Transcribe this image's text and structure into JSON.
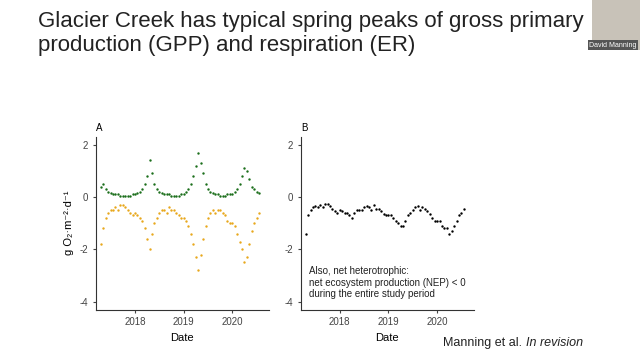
{
  "slide": {
    "title": "Glacier Creek has typical spring peaks of gross primary production (GPP) and respiration (ER)",
    "citation_authors": "Manning et al.",
    "citation_status": "In revision",
    "speaker": "David Manning"
  },
  "chart_data": [
    {
      "type": "scatter",
      "title": "A",
      "xlabel": "Date",
      "ylabel": "g O₂·m⁻²·d⁻¹",
      "x": [
        2017.3,
        2017.35,
        2017.4,
        2017.45,
        2017.5,
        2017.55,
        2017.6,
        2017.65,
        2017.7,
        2017.75,
        2017.8,
        2017.85,
        2017.9,
        2017.95,
        2018.0,
        2018.05,
        2018.1,
        2018.15,
        2018.2,
        2018.25,
        2018.3,
        2018.35,
        2018.4,
        2018.45,
        2018.5,
        2018.55,
        2018.6,
        2018.65,
        2018.7,
        2018.75,
        2018.8,
        2018.85,
        2018.9,
        2018.95,
        2019.0,
        2019.05,
        2019.1,
        2019.15,
        2019.2,
        2019.25,
        2019.3,
        2019.35,
        2019.4,
        2019.45,
        2019.5,
        2019.55,
        2019.6,
        2019.65,
        2019.7,
        2019.75,
        2019.8,
        2019.85,
        2019.9,
        2019.95,
        2020.0,
        2020.05,
        2020.1,
        2020.15,
        2020.2,
        2020.25,
        2020.3,
        2020.35,
        2020.4,
        2020.45,
        2020.5,
        2020.55
      ],
      "xlim": [
        2017.2,
        2020.75
      ],
      "xticks": [
        2018,
        2019,
        2020
      ],
      "ylim": [
        -4.3,
        2.3
      ],
      "yticks": [
        -4,
        -2,
        0,
        2
      ],
      "grid": false,
      "marker": "o",
      "series": [
        {
          "color": "#1b6e1b",
          "values": [
            0.4,
            0.5,
            0.3,
            0.2,
            0.15,
            0.1,
            0.1,
            0.1,
            0.05,
            0.05,
            0.05,
            0.05,
            0.05,
            0.1,
            0.1,
            0.15,
            0.2,
            0.3,
            0.5,
            0.8,
            1.4,
            0.9,
            0.5,
            0.3,
            0.2,
            0.15,
            0.1,
            0.1,
            0.1,
            0.05,
            0.05,
            0.05,
            0.05,
            0.1,
            0.1,
            0.2,
            0.3,
            0.5,
            0.8,
            1.2,
            1.7,
            1.3,
            0.9,
            0.5,
            0.3,
            0.2,
            0.15,
            0.1,
            0.1,
            0.05,
            0.05,
            0.05,
            0.1,
            0.1,
            0.1,
            0.2,
            0.3,
            0.5,
            0.8,
            1.1,
            1.0,
            0.7,
            0.4,
            0.3,
            0.2,
            0.15
          ]
        },
        {
          "color": "#e8a81c",
          "values": [
            -1.8,
            -1.2,
            -0.8,
            -0.6,
            -0.5,
            -0.5,
            -0.4,
            -0.5,
            -0.3,
            -0.3,
            -0.4,
            -0.5,
            -0.6,
            -0.7,
            -0.6,
            -0.7,
            -0.8,
            -0.9,
            -1.2,
            -1.6,
            -2.0,
            -1.4,
            -1.0,
            -0.8,
            -0.6,
            -0.5,
            -0.5,
            -0.6,
            -0.4,
            -0.5,
            -0.5,
            -0.6,
            -0.7,
            -0.8,
            -0.8,
            -0.9,
            -1.1,
            -1.4,
            -1.8,
            -2.3,
            -2.8,
            -2.2,
            -1.6,
            -1.1,
            -0.8,
            -0.6,
            -0.5,
            -0.6,
            -0.5,
            -0.5,
            -0.6,
            -0.7,
            -0.9,
            -1.0,
            -1.0,
            -1.1,
            -1.4,
            -1.7,
            -2.0,
            -2.5,
            -2.3,
            -1.8,
            -1.3,
            -1.0,
            -0.8,
            -0.6
          ]
        }
      ]
    },
    {
      "type": "scatter",
      "title": "B",
      "xlabel": "Date",
      "annotation": "Also, net heterotrophic:\nnet ecosystem production (NEP) < 0\nduring the entire study period",
      "x": [
        2017.3,
        2017.35,
        2017.4,
        2017.45,
        2017.5,
        2017.55,
        2017.6,
        2017.65,
        2017.7,
        2017.75,
        2017.8,
        2017.85,
        2017.9,
        2017.95,
        2018.0,
        2018.05,
        2018.1,
        2018.15,
        2018.2,
        2018.25,
        2018.3,
        2018.35,
        2018.4,
        2018.45,
        2018.5,
        2018.55,
        2018.6,
        2018.65,
        2018.7,
        2018.75,
        2018.8,
        2018.85,
        2018.9,
        2018.95,
        2019.0,
        2019.05,
        2019.1,
        2019.15,
        2019.2,
        2019.25,
        2019.3,
        2019.35,
        2019.4,
        2019.45,
        2019.5,
        2019.55,
        2019.6,
        2019.65,
        2019.7,
        2019.75,
        2019.8,
        2019.85,
        2019.9,
        2019.95,
        2020.0,
        2020.05,
        2020.1,
        2020.15,
        2020.2,
        2020.25,
        2020.3,
        2020.35,
        2020.4,
        2020.45,
        2020.5,
        2020.55
      ],
      "xlim": [
        2017.2,
        2020.75
      ],
      "xticks": [
        2018,
        2019,
        2020
      ],
      "ylim": [
        -4.3,
        2.3
      ],
      "yticks": [
        -4,
        -2,
        0,
        2
      ],
      "grid": false,
      "marker": "o",
      "series": [
        {
          "color": "#000000",
          "values": [
            -1.4,
            -0.7,
            -0.5,
            -0.4,
            -0.35,
            -0.4,
            -0.3,
            -0.4,
            -0.25,
            -0.25,
            -0.35,
            -0.45,
            -0.55,
            -0.6,
            -0.5,
            -0.55,
            -0.6,
            -0.6,
            -0.7,
            -0.8,
            -0.6,
            -0.5,
            -0.5,
            -0.5,
            -0.4,
            -0.35,
            -0.4,
            -0.5,
            -0.3,
            -0.45,
            -0.45,
            -0.55,
            -0.65,
            -0.7,
            -0.7,
            -0.7,
            -0.8,
            -0.9,
            -1.0,
            -1.1,
            -1.1,
            -0.9,
            -0.7,
            -0.6,
            -0.5,
            -0.4,
            -0.35,
            -0.5,
            -0.4,
            -0.45,
            -0.55,
            -0.65,
            -0.8,
            -0.9,
            -0.9,
            -0.9,
            -1.1,
            -1.2,
            -1.2,
            -1.4,
            -1.3,
            -1.1,
            -0.9,
            -0.7,
            -0.6,
            -0.45
          ]
        }
      ]
    }
  ]
}
